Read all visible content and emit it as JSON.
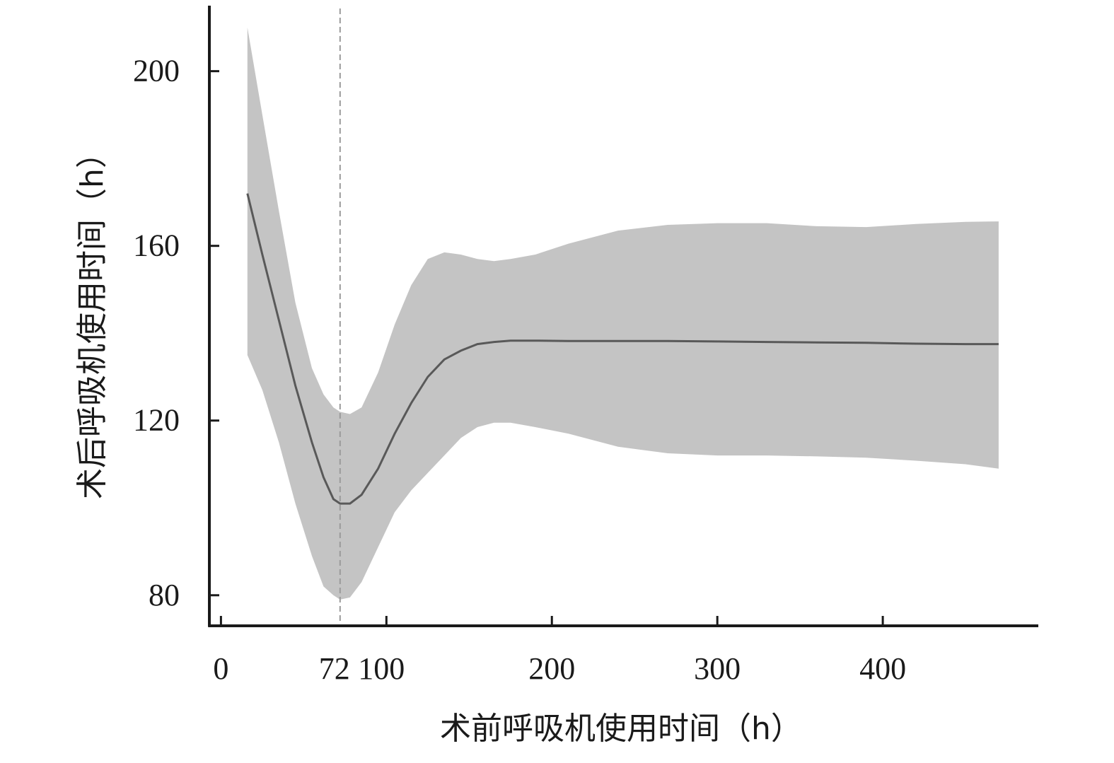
{
  "chart_data": {
    "type": "line",
    "xlabel": "术前呼吸机使用时间（h）",
    "ylabel": "术后呼吸机使用时间（h）",
    "xlim": [
      -7,
      494
    ],
    "ylim": [
      73,
      215
    ],
    "xticks": [
      0,
      72,
      100,
      200,
      300,
      400
    ],
    "yticks": [
      80,
      120,
      160,
      200
    ],
    "grid": false,
    "legend": "none",
    "reference_line_x": 72,
    "colors": {
      "band": "#c4c4c4",
      "line": "#595959",
      "reference": "#9a9a9a",
      "axis": "#1a1a1a"
    },
    "series": [
      {
        "x": [
          16,
          25,
          35,
          45,
          55,
          62,
          68,
          72,
          78,
          85,
          95,
          105,
          115,
          125,
          135,
          145,
          155,
          165,
          175,
          190,
          210,
          240,
          270,
          300,
          330,
          360,
          390,
          420,
          450,
          470
        ],
        "y": [
          172,
          158,
          143,
          128,
          115,
          107,
          102,
          101,
          101,
          103,
          109,
          117,
          124,
          130,
          134,
          136,
          137.5,
          138,
          138.3,
          138.3,
          138.2,
          138.2,
          138.2,
          138.1,
          138,
          137.9,
          137.8,
          137.6,
          137.5,
          137.5
        ],
        "lower": [
          135,
          127,
          115,
          101,
          89,
          82,
          80,
          79,
          79.5,
          83,
          91,
          99,
          104,
          108,
          112,
          116,
          118.5,
          119.5,
          119.5,
          118.5,
          117,
          114,
          112.5,
          112,
          112,
          111.8,
          111.5,
          110.8,
          110,
          109
        ],
        "upper": [
          210,
          190,
          168,
          147,
          132,
          126,
          123,
          122,
          121.5,
          123,
          131,
          142,
          151,
          157,
          158.5,
          158,
          157,
          156.5,
          157,
          158,
          160.5,
          163.5,
          164.8,
          165.2,
          165.2,
          164.5,
          164.3,
          165,
          165.5,
          165.6
        ]
      }
    ]
  }
}
